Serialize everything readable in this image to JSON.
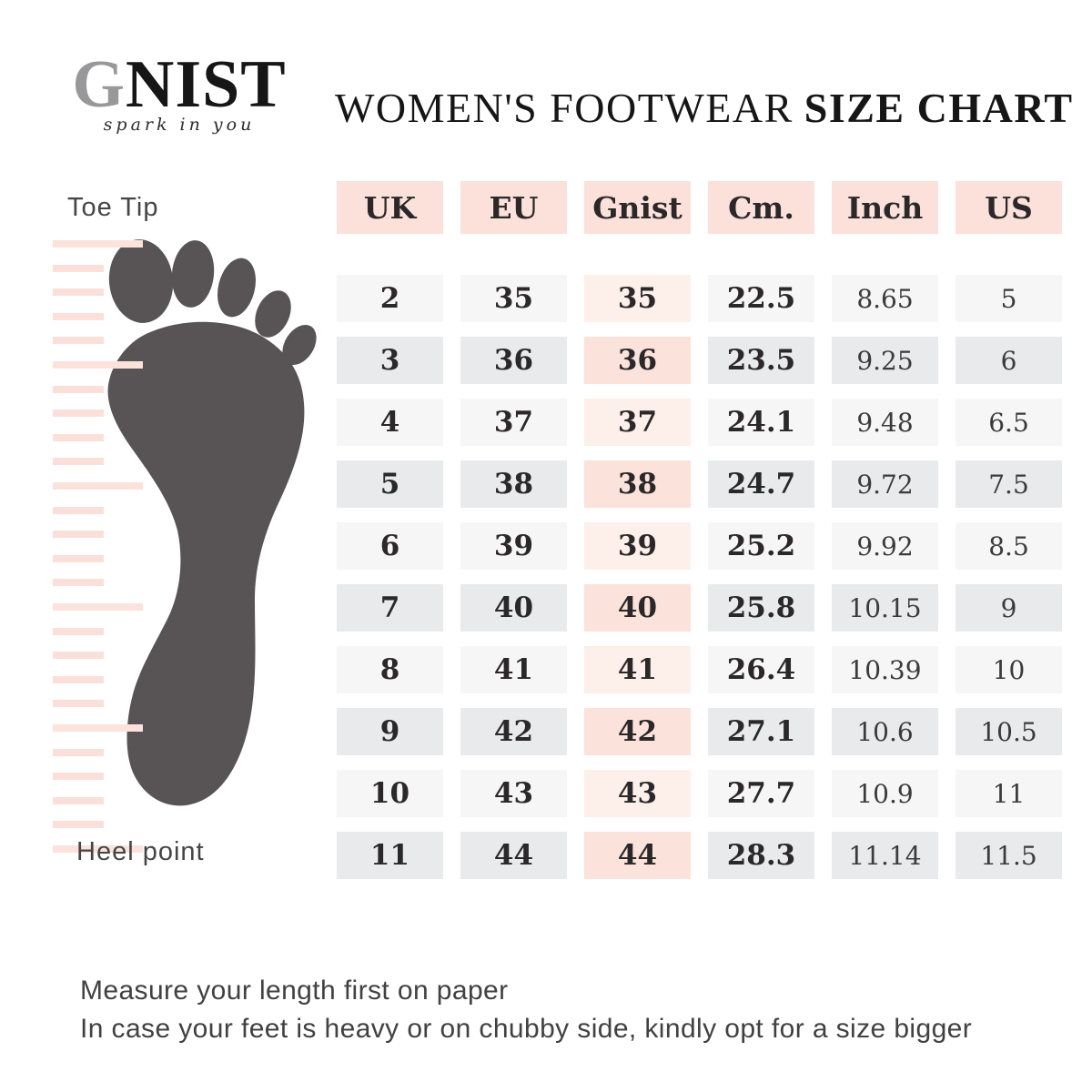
{
  "brand": {
    "letter_g": "G",
    "rest": "NIST",
    "tagline": "spark in you"
  },
  "title": {
    "regular": "WOMEN'S FOOTWEAR",
    "bold": "SIZE CHART"
  },
  "diagram": {
    "toe_label": "Toe Tip",
    "heel_label": "Heel point"
  },
  "chart_data": {
    "type": "table",
    "title": "Women's Footwear Size Chart",
    "columns": [
      "UK",
      "EU",
      "Gnist",
      "Cm.",
      "Inch",
      "US"
    ],
    "rows": [
      [
        "2",
        "35",
        "35",
        "22.5",
        "8.65",
        "5"
      ],
      [
        "3",
        "36",
        "36",
        "23.5",
        "9.25",
        "6"
      ],
      [
        "4",
        "37",
        "37",
        "24.1",
        "9.48",
        "6.5"
      ],
      [
        "5",
        "38",
        "38",
        "24.7",
        "9.72",
        "7.5"
      ],
      [
        "6",
        "39",
        "39",
        "25.2",
        "9.92",
        "8.5"
      ],
      [
        "7",
        "40",
        "40",
        "25.8",
        "10.15",
        "9"
      ],
      [
        "8",
        "41",
        "41",
        "26.4",
        "10.39",
        "10"
      ],
      [
        "9",
        "42",
        "42",
        "27.1",
        "10.6",
        "10.5"
      ],
      [
        "10",
        "43",
        "43",
        "27.7",
        "10.9",
        "11"
      ],
      [
        "11",
        "44",
        "44",
        "28.3",
        "11.14",
        "11.5"
      ]
    ]
  },
  "footnotes": [
    "Measure your length first on paper",
    "In case your feet is heavy or on chubby side, kindly opt for a size bigger"
  ],
  "colors": {
    "header_pink": "#fbe1da",
    "gnist_col_pink_light": "#fdefe9",
    "gnist_col_pink_dark": "#fbe2da",
    "row_gray_light": "#f6f6f7",
    "row_gray_dark": "#e9eaec",
    "foot_gray": "#585455",
    "ruler_pink": "#fbe0d9",
    "text_dark": "#2a2829"
  }
}
